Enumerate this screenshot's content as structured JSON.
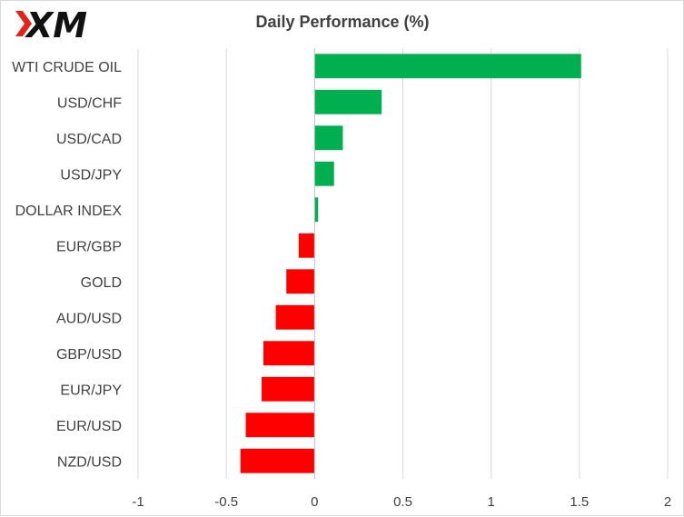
{
  "logo": {
    "text": "XM",
    "accent_color": "#e2231a",
    "text_color": "#111111"
  },
  "colors": {
    "positive": "#00b050",
    "negative": "#ff0000",
    "grid": "#d9d9d9",
    "axis": "#bfbfbf"
  },
  "chart_data": {
    "type": "bar",
    "orientation": "horizontal",
    "title": "Daily Performance  (%)",
    "categories": [
      "WTI CRUDE OIL",
      "USD/CHF",
      "USD/CAD",
      "USD/JPY",
      "DOLLAR INDEX",
      "EUR/GBP",
      "GOLD",
      "AUD/USD",
      "GBP/USD",
      "EUR/JPY",
      "EUR/USD",
      "NZD/USD"
    ],
    "values": [
      1.51,
      0.38,
      0.16,
      0.11,
      0.02,
      -0.09,
      -0.16,
      -0.22,
      -0.29,
      -0.3,
      -0.39,
      -0.42
    ],
    "xlim": [
      -1,
      2
    ],
    "xticks": [
      -1,
      -0.5,
      0,
      0.5,
      1,
      1.5,
      2
    ],
    "xtick_labels": [
      "-1",
      "-0.5",
      "0",
      "0.5",
      "1",
      "1.5",
      "2"
    ],
    "grid": "vertical",
    "legend": "none"
  }
}
